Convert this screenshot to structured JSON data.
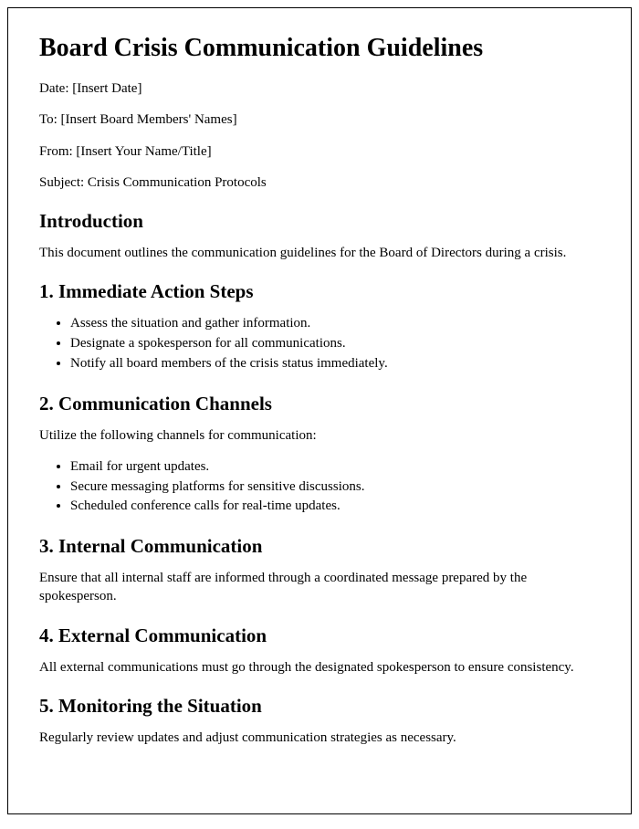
{
  "title": "Board Crisis Communication Guidelines",
  "meta": {
    "date": "Date: [Insert Date]",
    "to": "To: [Insert Board Members' Names]",
    "from": "From: [Insert Your Name/Title]",
    "subject": "Subject: Crisis Communication Protocols"
  },
  "intro": {
    "heading": "Introduction",
    "body": "This document outlines the communication guidelines for the Board of Directors during a crisis."
  },
  "s1": {
    "heading": "1. Immediate Action Steps",
    "items": [
      "Assess the situation and gather information.",
      "Designate a spokesperson for all communications.",
      "Notify all board members of the crisis status immediately."
    ]
  },
  "s2": {
    "heading": "2. Communication Channels",
    "lead": "Utilize the following channels for communication:",
    "items": [
      "Email for urgent updates.",
      "Secure messaging platforms for sensitive discussions.",
      "Scheduled conference calls for real-time updates."
    ]
  },
  "s3": {
    "heading": "3. Internal Communication",
    "body": "Ensure that all internal staff are informed through a coordinated message prepared by the spokesperson."
  },
  "s4": {
    "heading": "4. External Communication",
    "body": "All external communications must go through the designated spokesperson to ensure consistency."
  },
  "s5": {
    "heading": "5. Monitoring the Situation",
    "body": "Regularly review updates and adjust communication strategies as necessary."
  }
}
